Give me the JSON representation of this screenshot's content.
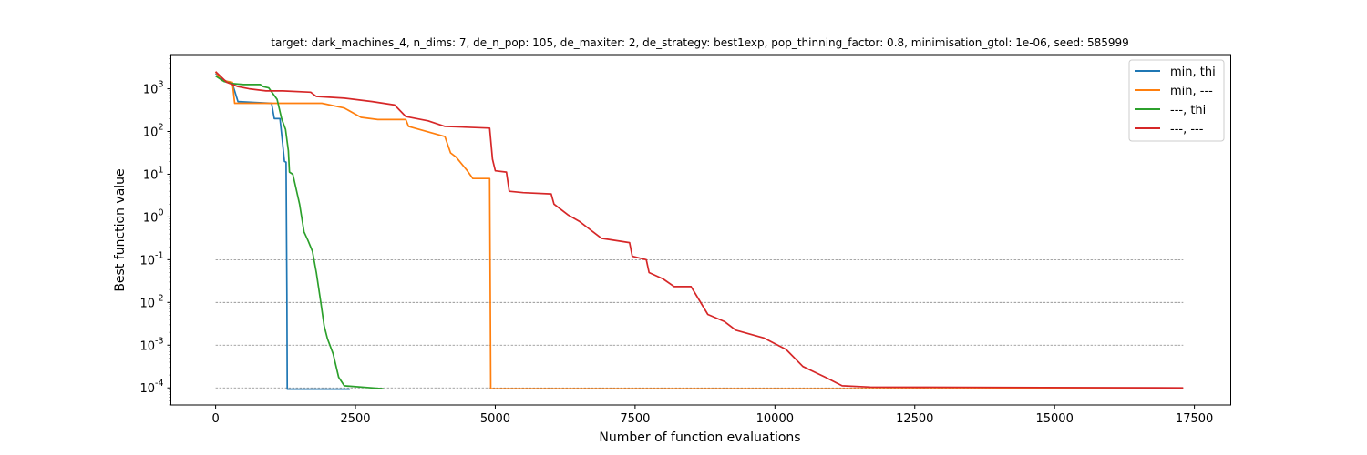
{
  "chart_data": {
    "type": "line",
    "title": "target: dark_machines_4, n_dims: 7, de_n_pop: 105, de_maxiter: 2, de_strategy: best1exp, pop_thinning_factor: 0.8, minimisation_gtol: 1e-06, seed: 585999",
    "xlabel": "Number of function evaluations",
    "ylabel": "Best function value",
    "xscale": "linear",
    "yscale": "log",
    "xlim": [
      -800,
      18150
    ],
    "ylim_log10": [
      -4.4,
      3.8
    ],
    "x_ticks": [
      0,
      2500,
      5000,
      7500,
      10000,
      12500,
      15000,
      17500
    ],
    "x_tick_labels": [
      "0",
      "2500",
      "5000",
      "7500",
      "10000",
      "12500",
      "15000",
      "17500"
    ],
    "y_ticks_log10": [
      -4,
      -3,
      -2,
      -1,
      0,
      1,
      2,
      3
    ],
    "y_tick_labels": [
      "10^-4",
      "10^-3",
      "10^-2",
      "10^-1",
      "10^0",
      "10^1",
      "10^2",
      "10^3"
    ],
    "reference_lines_log10": [
      0,
      -1,
      -2,
      -3,
      -4
    ],
    "reference_line_xrange": [
      0,
      17300
    ],
    "legend_position": "upper right",
    "series": [
      {
        "name": "min, thi",
        "color": "#1f77b4",
        "points": [
          [
            0,
            3.36
          ],
          [
            150,
            3.2
          ],
          [
            300,
            3.12
          ],
          [
            400,
            2.7
          ],
          [
            700,
            2.68
          ],
          [
            1000,
            2.66
          ],
          [
            1050,
            2.3
          ],
          [
            1150,
            2.3
          ],
          [
            1200,
            1.7
          ],
          [
            1230,
            1.3
          ],
          [
            1260,
            1.28
          ],
          [
            1275,
            -1.8
          ],
          [
            1280,
            -4.03
          ],
          [
            2400,
            -4.03
          ]
        ]
      },
      {
        "name": "min, ---",
        "color": "#ff7f0e",
        "points": [
          [
            0,
            3.4
          ],
          [
            100,
            3.2
          ],
          [
            300,
            3.15
          ],
          [
            340,
            2.66
          ],
          [
            400,
            2.66
          ],
          [
            1900,
            2.66
          ],
          [
            2300,
            2.55
          ],
          [
            2600,
            2.33
          ],
          [
            2900,
            2.28
          ],
          [
            3400,
            2.28
          ],
          [
            3450,
            2.12
          ],
          [
            4100,
            1.88
          ],
          [
            4200,
            1.5
          ],
          [
            4300,
            1.4
          ],
          [
            4500,
            1.08
          ],
          [
            4600,
            0.9
          ],
          [
            4900,
            0.9
          ],
          [
            4920,
            -4.02
          ],
          [
            11700,
            -4.02
          ],
          [
            17300,
            -4.02
          ]
        ]
      },
      {
        "name": "---, thi",
        "color": "#2ca02c",
        "points": [
          [
            0,
            3.3
          ],
          [
            150,
            3.17
          ],
          [
            300,
            3.12
          ],
          [
            500,
            3.1
          ],
          [
            800,
            3.1
          ],
          [
            850,
            3.05
          ],
          [
            950,
            3.02
          ],
          [
            1100,
            2.75
          ],
          [
            1180,
            2.3
          ],
          [
            1250,
            2.05
          ],
          [
            1300,
            1.55
          ],
          [
            1320,
            1.05
          ],
          [
            1380,
            1.0
          ],
          [
            1500,
            0.3
          ],
          [
            1580,
            -0.35
          ],
          [
            1650,
            -0.55
          ],
          [
            1730,
            -0.8
          ],
          [
            1800,
            -1.3
          ],
          [
            1880,
            -2.0
          ],
          [
            1940,
            -2.55
          ],
          [
            2000,
            -2.85
          ],
          [
            2100,
            -3.2
          ],
          [
            2200,
            -3.75
          ],
          [
            2300,
            -3.95
          ],
          [
            3000,
            -4.02
          ]
        ]
      },
      {
        "name": "---, ---",
        "color": "#d62728",
        "points": [
          [
            0,
            3.4
          ],
          [
            200,
            3.15
          ],
          [
            400,
            3.05
          ],
          [
            600,
            3.0
          ],
          [
            900,
            2.95
          ],
          [
            1200,
            2.95
          ],
          [
            1700,
            2.92
          ],
          [
            1800,
            2.82
          ],
          [
            2300,
            2.78
          ],
          [
            2800,
            2.7
          ],
          [
            3200,
            2.62
          ],
          [
            3400,
            2.35
          ],
          [
            3800,
            2.25
          ],
          [
            4100,
            2.12
          ],
          [
            4900,
            2.08
          ],
          [
            4950,
            1.35
          ],
          [
            5000,
            1.08
          ],
          [
            5200,
            1.05
          ],
          [
            5250,
            0.6
          ],
          [
            5500,
            0.57
          ],
          [
            6000,
            0.54
          ],
          [
            6050,
            0.3
          ],
          [
            6300,
            0.05
          ],
          [
            6500,
            -0.1
          ],
          [
            6700,
            -0.3
          ],
          [
            6900,
            -0.5
          ],
          [
            7400,
            -0.6
          ],
          [
            7450,
            -0.92
          ],
          [
            7700,
            -1.0
          ],
          [
            7750,
            -1.3
          ],
          [
            8000,
            -1.45
          ],
          [
            8200,
            -1.63
          ],
          [
            8500,
            -1.63
          ],
          [
            8800,
            -2.28
          ],
          [
            9100,
            -2.45
          ],
          [
            9300,
            -2.65
          ],
          [
            9800,
            -2.83
          ],
          [
            10200,
            -3.1
          ],
          [
            10500,
            -3.5
          ],
          [
            10900,
            -3.75
          ],
          [
            11200,
            -3.95
          ],
          [
            11700,
            -3.98
          ],
          [
            17300,
            -4.0
          ]
        ]
      }
    ]
  }
}
